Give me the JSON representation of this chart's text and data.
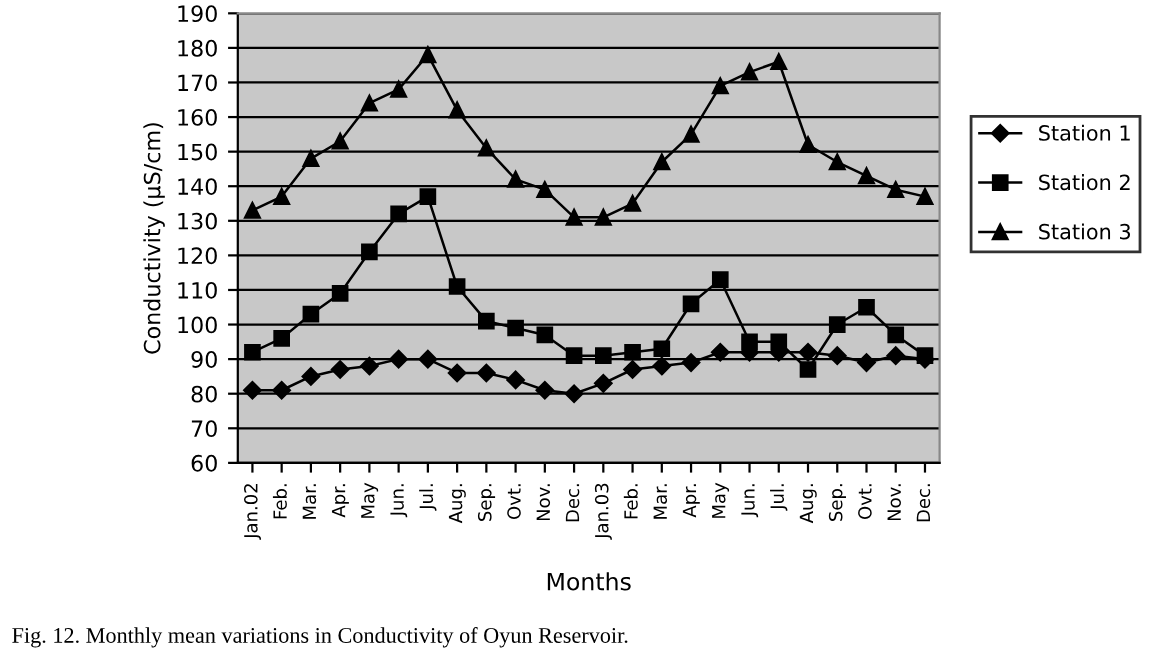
{
  "chart_data": {
    "type": "line",
    "xlabel": "Months",
    "ylabel": "Conductivity (µS/cm)",
    "categories": [
      "Jan.02",
      "Feb.",
      "Mar.",
      "Apr.",
      "May",
      "Jun.",
      "Jul.",
      "Aug.",
      "Sep.",
      "Ovt.",
      "Nov.",
      "Dec.",
      "Jan.03",
      "Feb.",
      "Mar.",
      "Apr.",
      "May",
      "Jun.",
      "Jul.",
      "Aug.",
      "Sep.",
      "Ovt.",
      "Nov.",
      "Dec."
    ],
    "series": [
      {
        "name": "Station 1",
        "color": "#000000",
        "marker": "diamond",
        "values": [
          81,
          81,
          85,
          87,
          88,
          90,
          90,
          86,
          86,
          84,
          81,
          80,
          83,
          87,
          88,
          89,
          92,
          92,
          92,
          92,
          91,
          89,
          91,
          90
        ]
      },
      {
        "name": "Station 2",
        "color": "#000000",
        "marker": "square",
        "values": [
          92,
          96,
          103,
          109,
          121,
          132,
          137,
          111,
          101,
          99,
          97,
          91,
          91,
          92,
          93,
          106,
          113,
          95,
          95,
          87,
          100,
          105,
          97,
          91
        ]
      },
      {
        "name": "Station 3",
        "color": "#000000",
        "marker": "triangle",
        "values": [
          133,
          137,
          148,
          153,
          164,
          168,
          178,
          162,
          151,
          142,
          139,
          131,
          131,
          135,
          147,
          155,
          169,
          173,
          176,
          152,
          147,
          143,
          139,
          137
        ]
      }
    ],
    "ylim": [
      60,
      190
    ],
    "yticks": [
      60,
      70,
      80,
      90,
      100,
      110,
      120,
      130,
      140,
      150,
      160,
      170,
      180,
      190
    ],
    "grid": "y",
    "legend": "right",
    "line_style": "solid",
    "annotations": [
      "Fig. 12. Monthly mean variations in Conductivity of Oyun Reservoir."
    ]
  }
}
